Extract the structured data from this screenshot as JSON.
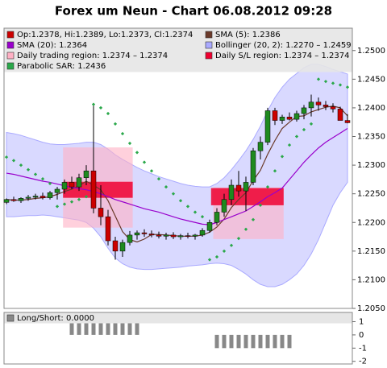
{
  "chart_data": [
    {
      "type": "candlestick",
      "title": "Forex um Neun - Chart 06.08.2012 09:28",
      "ohlc": {
        "name": "Op:1.2378, Hi:1.2389, Lo:1.2373, Cl:1.2374",
        "color_up": "#1f8a1f",
        "color_down": "#cc0000",
        "open": [
          1.2235,
          1.224,
          1.2238,
          1.2242,
          1.2244,
          1.2246,
          1.2243,
          1.2252,
          1.2258,
          1.227,
          1.2262,
          1.2278,
          1.229,
          1.2225,
          1.221,
          1.2168,
          1.215,
          1.2165,
          1.2178,
          1.2182,
          1.218,
          1.2178,
          1.2176,
          1.2178,
          1.2175,
          1.2177,
          1.2176,
          1.2178,
          1.2186,
          1.22,
          1.2218,
          1.224,
          1.2265,
          1.2255,
          1.227,
          1.2325,
          1.234,
          1.2395,
          1.2378,
          1.2384,
          1.238,
          1.239,
          1.24,
          1.241,
          1.2405,
          1.2402,
          1.2398,
          1.2378
        ],
        "high": [
          1.2242,
          1.2245,
          1.2244,
          1.2248,
          1.225,
          1.2252,
          1.2255,
          1.2262,
          1.2275,
          1.228,
          1.2285,
          1.23,
          1.2406,
          1.2265,
          1.2222,
          1.2175,
          1.217,
          1.2185,
          1.2186,
          1.2188,
          1.2186,
          1.2184,
          1.2182,
          1.2183,
          1.218,
          1.2182,
          1.218,
          1.219,
          1.2205,
          1.2225,
          1.225,
          1.2275,
          1.229,
          1.228,
          1.233,
          1.235,
          1.24,
          1.24,
          1.2388,
          1.2392,
          1.2395,
          1.2405,
          1.2423,
          1.2418,
          1.2412,
          1.2408,
          1.2402,
          1.2389
        ],
        "low": [
          1.2232,
          1.2236,
          1.2234,
          1.2238,
          1.224,
          1.224,
          1.224,
          1.224,
          1.225,
          1.2258,
          1.2255,
          1.2265,
          1.2216,
          1.2195,
          1.216,
          1.2135,
          1.214,
          1.216,
          1.217,
          1.2175,
          1.2174,
          1.2172,
          1.217,
          1.2171,
          1.217,
          1.2172,
          1.217,
          1.2175,
          1.2182,
          1.2195,
          1.221,
          1.223,
          1.2245,
          1.222,
          1.2265,
          1.231,
          1.2335,
          1.237,
          1.2372,
          1.2378,
          1.2376,
          1.238,
          1.2385,
          1.2395,
          1.2396,
          1.2392,
          1.238,
          1.2373
        ],
        "close": [
          1.224,
          1.2238,
          1.2242,
          1.2244,
          1.2246,
          1.2243,
          1.2252,
          1.2258,
          1.227,
          1.2262,
          1.2278,
          1.229,
          1.2225,
          1.221,
          1.2168,
          1.215,
          1.2165,
          1.2178,
          1.2182,
          1.218,
          1.2178,
          1.2176,
          1.2178,
          1.2175,
          1.2177,
          1.2176,
          1.2178,
          1.2186,
          1.22,
          1.2218,
          1.224,
          1.2265,
          1.2255,
          1.227,
          1.2325,
          1.234,
          1.2395,
          1.2378,
          1.2384,
          1.238,
          1.239,
          1.24,
          1.241,
          1.2405,
          1.2402,
          1.2398,
          1.2378,
          1.2374
        ]
      },
      "series": [
        {
          "name": "SMA (5): 1.2386",
          "color": "#6b3a2a",
          "style": "line",
          "values": [
            1.224,
            1.2239,
            1.2239,
            1.224,
            1.2242,
            1.2243,
            1.2245,
            1.2249,
            1.2254,
            1.2258,
            1.2264,
            1.2272,
            1.2265,
            1.2257,
            1.2238,
            1.2211,
            1.2184,
            1.217,
            1.2166,
            1.2171,
            1.2179,
            1.2179,
            1.2178,
            1.2177,
            1.2176,
            1.2176,
            1.2176,
            1.2178,
            1.2183,
            1.2192,
            1.2206,
            1.2226,
            1.224,
            1.2252,
            1.2273,
            1.2291,
            1.2319,
            1.2343,
            1.2364,
            1.2375,
            1.2385,
            1.2386,
            1.2393,
            1.2397,
            1.2401,
            1.2403,
            1.24,
            1.2386
          ]
        },
        {
          "name": "SMA (20): 1.2364",
          "color": "#9900cc",
          "style": "line",
          "values": [
            1.2286,
            1.2284,
            1.2281,
            1.2278,
            1.2275,
            1.2272,
            1.227,
            1.2267,
            1.2264,
            1.2261,
            1.2259,
            1.2257,
            1.2254,
            1.225,
            1.2245,
            1.224,
            1.2236,
            1.2232,
            1.2228,
            1.2224,
            1.2221,
            1.2218,
            1.2214,
            1.221,
            1.2206,
            1.2203,
            1.22,
            1.2197,
            1.2196,
            1.22,
            1.2205,
            1.221,
            1.2215,
            1.222,
            1.2228,
            1.2236,
            1.2245,
            1.2252,
            1.226,
            1.2275,
            1.229,
            1.2305,
            1.2318,
            1.233,
            1.234,
            1.2348,
            1.2356,
            1.2364
          ]
        },
        {
          "name": "Parabolic SAR: 1.2436",
          "color": "#2aa84a",
          "style": "dots",
          "values": [
            1.2314,
            1.2308,
            1.23,
            1.2292,
            1.2284,
            1.2276,
            1.2268,
            1.2228,
            1.2232,
            1.2236,
            1.224,
            1.2245,
            1.2406,
            1.24,
            1.239,
            1.2372,
            1.2355,
            1.2338,
            1.2322,
            1.2305,
            1.229,
            1.2276,
            1.2262,
            1.225,
            1.2238,
            1.2228,
            1.2218,
            1.221,
            1.2135,
            1.214,
            1.215,
            1.216,
            1.2172,
            1.2188,
            1.2205,
            1.223,
            1.2262,
            1.229,
            1.2315,
            1.2335,
            1.235,
            1.2362,
            1.2372,
            1.245,
            1.2446,
            1.2443,
            1.244,
            1.2436
          ]
        }
      ],
      "band": {
        "name": "Bollinger (20, 2): 1.2270 – 1.2459",
        "color": "#aaaaff",
        "upper": [
          1.2357,
          1.2355,
          1.2352,
          1.2348,
          1.2344,
          1.234,
          1.2337,
          1.2336,
          1.2336,
          1.2337,
          1.2338,
          1.234,
          1.234,
          1.2336,
          1.2328,
          1.2318,
          1.231,
          1.2303,
          1.2296,
          1.229,
          1.2285,
          1.228,
          1.2276,
          1.2272,
          1.2268,
          1.2265,
          1.2263,
          1.2262,
          1.2262,
          1.2268,
          1.2278,
          1.2292,
          1.2308,
          1.2325,
          1.2345,
          1.2368,
          1.2395,
          1.2418,
          1.2436,
          1.245,
          1.246,
          1.247,
          1.2476,
          1.2476,
          1.2472,
          1.2467,
          1.2463,
          1.2459
        ],
        "lower": [
          1.221,
          1.221,
          1.2211,
          1.2212,
          1.2212,
          1.2213,
          1.2212,
          1.221,
          1.2208,
          1.2206,
          1.2204,
          1.22,
          1.219,
          1.2175,
          1.2155,
          1.2138,
          1.2128,
          1.2122,
          1.2119,
          1.2118,
          1.2118,
          1.2119,
          1.212,
          1.2121,
          1.2122,
          1.2124,
          1.2125,
          1.2126,
          1.2128,
          1.2129,
          1.2128,
          1.2125,
          1.2118,
          1.211,
          1.21,
          1.2092,
          1.2088,
          1.2088,
          1.2092,
          1.21,
          1.211,
          1.2125,
          1.2145,
          1.217,
          1.22,
          1.223,
          1.2252,
          1.227
        ]
      },
      "regions": [
        {
          "name": "Daily trading region: 1.2374 – 1.2374",
          "color": "#ffb0c4",
          "boxes": [
            {
              "start": 7.8,
              "end": 17.4,
              "low": 1.2191,
              "high": 1.2331
            },
            {
              "start": 28.5,
              "end": 38.2,
              "low": 1.2171,
              "high": 1.2261
            }
          ]
        },
        {
          "name": "Daily S/L region: 1.2374 – 1.2374",
          "color": "#ee0030",
          "boxes": [
            {
              "start": 7.8,
              "end": 17.4,
              "low": 1.2243,
              "high": 1.2271
            },
            {
              "start": 28.2,
              "end": 38.2,
              "low": 1.223,
              "high": 1.226
            }
          ]
        }
      ],
      "ylim": [
        1.205,
        1.2539
      ],
      "yticks": [
        {
          "value": 1.205,
          "label": "1.2050"
        },
        {
          "value": 1.21,
          "label": "1.2100"
        },
        {
          "value": 1.215,
          "label": "1.2150"
        },
        {
          "value": 1.22,
          "label": "1.2200"
        },
        {
          "value": 1.225,
          "label": "1.2250"
        },
        {
          "value": 1.23,
          "label": "1.2300"
        },
        {
          "value": 1.235,
          "label": "1.2350"
        },
        {
          "value": 1.24,
          "label": "1.2400"
        },
        {
          "value": 1.245,
          "label": "1.2450"
        },
        {
          "value": 1.25,
          "label": "1.2500"
        }
      ]
    },
    {
      "type": "bar",
      "series": [
        {
          "name": "Long/Short: 0.0000",
          "color": "#888888",
          "values": [
            0,
            0,
            0,
            0,
            0,
            0,
            0,
            0,
            0,
            1,
            1,
            1,
            1,
            1,
            1,
            1,
            1,
            1,
            1,
            0,
            0,
            0,
            0,
            0,
            0,
            0,
            0,
            0,
            0,
            -1,
            -1,
            -1,
            -1,
            -1,
            -1,
            -1,
            -1,
            -1,
            -1,
            -1,
            0,
            0,
            0,
            0,
            0,
            0,
            0,
            0
          ]
        }
      ],
      "ylim": [
        -2.2,
        1.7
      ],
      "yticks": [
        1,
        0,
        -1,
        -2
      ]
    }
  ]
}
